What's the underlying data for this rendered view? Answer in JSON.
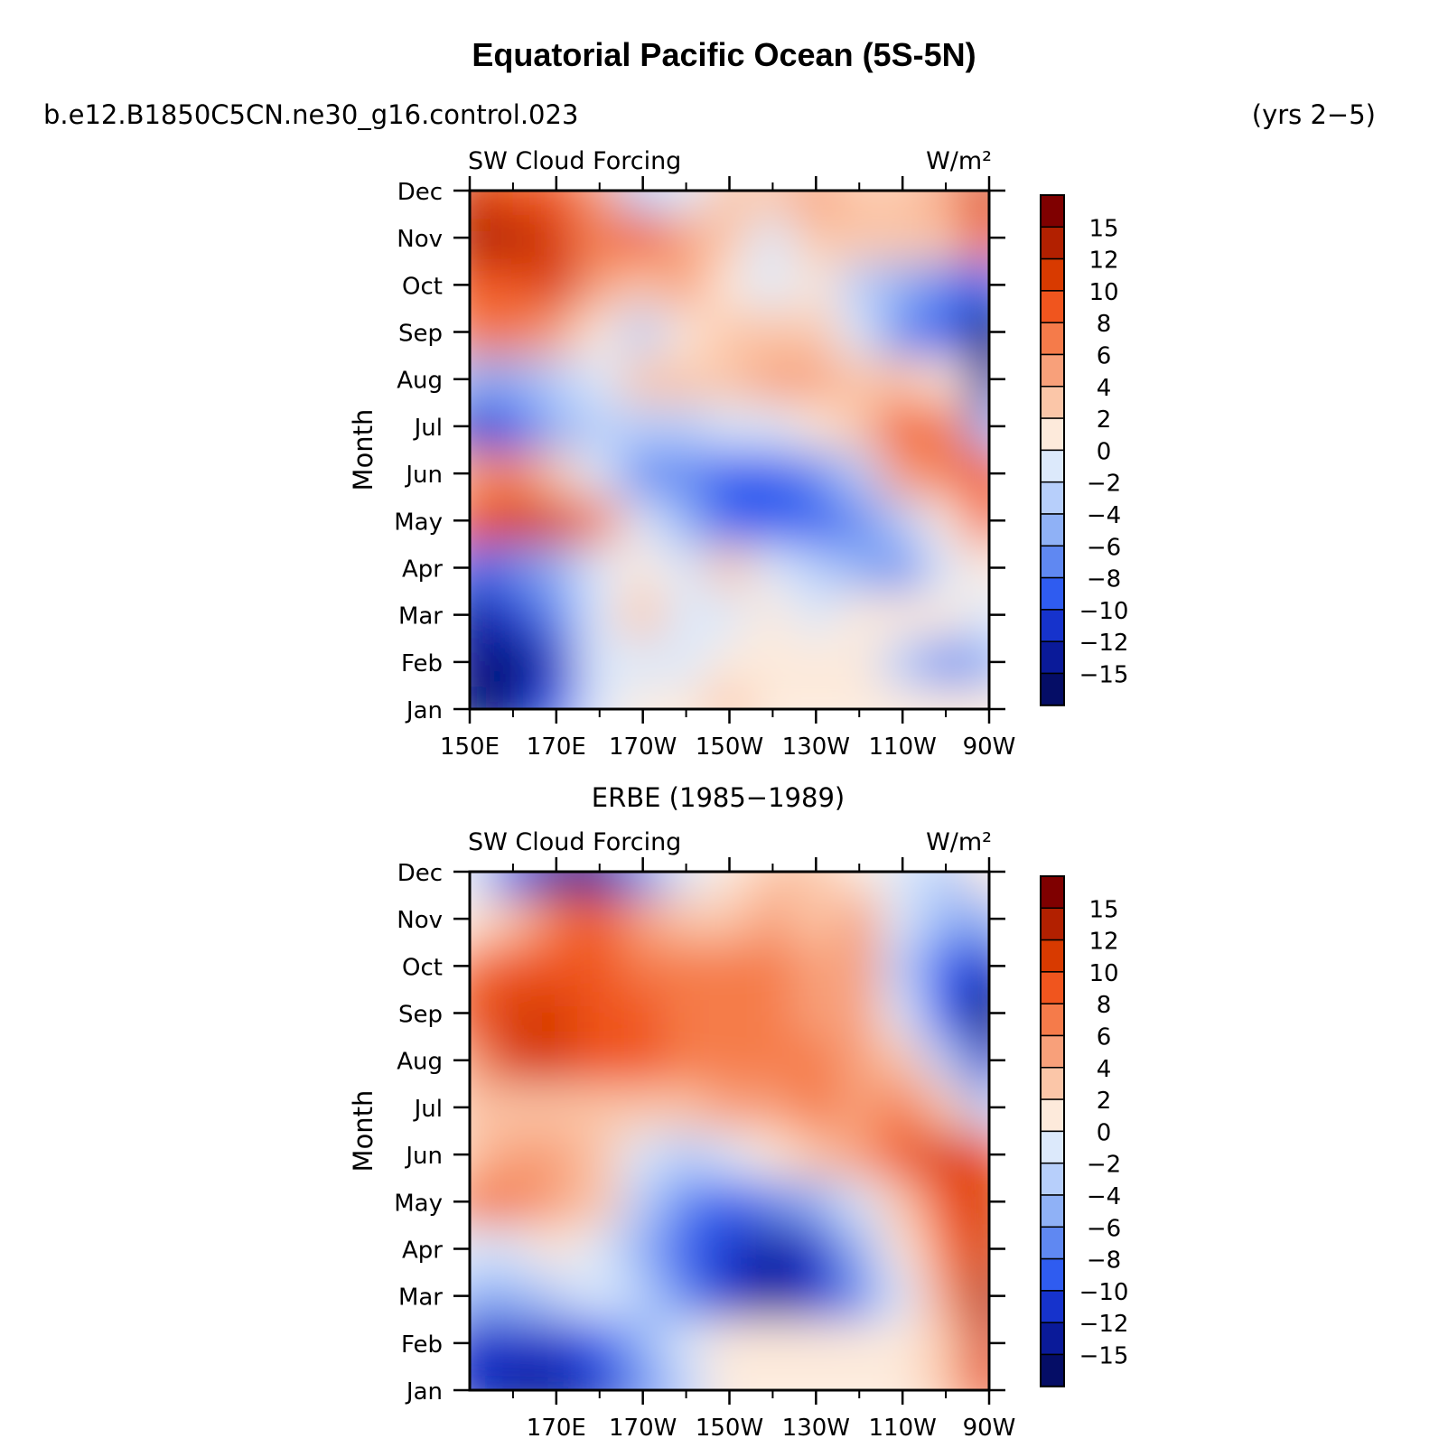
{
  "title": "Equatorial Pacific Ocean (5S-5N)",
  "case_name": "b.e12.B1850C5CN.ne30_g16.control.023",
  "years_label": "(yrs 2−5)",
  "colormap": {
    "levels": [
      "15",
      "12",
      "10",
      "8",
      "6",
      "4",
      "2",
      "0",
      "−2",
      "−4",
      "−6",
      "−8",
      "−10",
      "−12",
      "−15"
    ],
    "colors": [
      "#7f0000",
      "#b22000",
      "#d83a00",
      "#f0551e",
      "#f57b4a",
      "#f8a07a",
      "#fbc6a8",
      "#fdeadb",
      "#dce9fb",
      "#b7cffb",
      "#8fb1f6",
      "#5f88f2",
      "#2f5cf0",
      "#1633cc",
      "#0a1a99",
      "#050d66"
    ]
  },
  "chart_data": [
    {
      "type": "heatmap",
      "variable": "SW Cloud Forcing",
      "units": "W/m²",
      "ylabel": "Month",
      "y_ticks": [
        "Jan",
        "Feb",
        "Mar",
        "Apr",
        "May",
        "Jun",
        "Jul",
        "Aug",
        "Sep",
        "Oct",
        "Nov",
        "Dec"
      ],
      "x_ticks": [
        "150E",
        "170E",
        "170W",
        "150W",
        "130W",
        "110W",
        "90W"
      ],
      "x_range_lon": [
        150,
        270
      ],
      "approx_values": [
        [
          -16,
          -14,
          -10,
          -2,
          1,
          1,
          2,
          1,
          1,
          0,
          0,
          0,
          0
        ],
        [
          -15,
          -16,
          -12,
          -2,
          -2,
          -1,
          1,
          0,
          0,
          0,
          -4,
          -8,
          -5
        ],
        [
          -14,
          -12,
          -8,
          -2,
          2,
          -1,
          -1,
          1,
          -1,
          0,
          0,
          0,
          -1
        ],
        [
          -9,
          -8,
          -6,
          -2,
          0,
          -1,
          2,
          -1,
          -4,
          -6,
          -7,
          -2,
          0
        ],
        [
          9,
          11,
          10,
          6,
          -2,
          -6,
          -9,
          -10,
          -10,
          -8,
          -4,
          0,
          8
        ],
        [
          5,
          6,
          2,
          -2,
          -7,
          -8,
          -10,
          -9,
          -7,
          -4,
          4,
          7,
          8
        ],
        [
          -12,
          -10,
          -6,
          -3,
          -4,
          -3,
          -2,
          -1,
          1,
          3,
          8,
          7,
          -6
        ],
        [
          -6,
          -5,
          -4,
          -2,
          2,
          2,
          3,
          5,
          4,
          2,
          3,
          0,
          -15
        ],
        [
          7,
          7,
          4,
          1,
          -3,
          0,
          2,
          2,
          2,
          -2,
          -8,
          -10,
          -16
        ],
        [
          8,
          9,
          10,
          5,
          3,
          4,
          1,
          -2,
          0,
          -4,
          -6,
          -8,
          -10
        ],
        [
          12,
          14,
          11,
          6,
          8,
          5,
          2,
          -1,
          3,
          2,
          2,
          3,
          8
        ],
        [
          10,
          9,
          8,
          5,
          -3,
          -2,
          2,
          3,
          4,
          3,
          3,
          4,
          10
        ]
      ]
    },
    {
      "type": "heatmap",
      "panel_title": "ERBE (1985−1989)",
      "variable": "SW Cloud Forcing",
      "units": "W/m²",
      "ylabel": "Month",
      "y_ticks": [
        "Jan",
        "Feb",
        "Mar",
        "Apr",
        "May",
        "Jun",
        "Jul",
        "Aug",
        "Sep",
        "Oct",
        "Nov",
        "Dec"
      ],
      "x_ticks": [
        "170E",
        "170W",
        "150W",
        "130W",
        "110W",
        "90W"
      ],
      "x_range_lon": [
        150,
        270
      ],
      "approx_values": [
        [
          -12,
          -14,
          -14,
          -12,
          -8,
          -3,
          0,
          1,
          1,
          0,
          0,
          2,
          8
        ],
        [
          -11,
          -12,
          -11,
          -9,
          -6,
          -2,
          1,
          1,
          1,
          1,
          0,
          2,
          10
        ],
        [
          -6,
          -6,
          -3,
          -2,
          -3,
          -8,
          -11,
          -13,
          -12,
          -8,
          -2,
          5,
          14
        ],
        [
          -2,
          -2,
          0,
          -1,
          -6,
          -9,
          -12,
          -13,
          -11,
          -6,
          0,
          6,
          10
        ],
        [
          7,
          6,
          4,
          2,
          -4,
          -8,
          -9,
          -8,
          -5,
          -2,
          3,
          8,
          10
        ],
        [
          3,
          4,
          5,
          2,
          -1,
          -3,
          -2,
          0,
          2,
          4,
          9,
          11,
          8
        ],
        [
          3,
          2,
          3,
          3,
          2,
          3,
          4,
          5,
          6,
          5,
          6,
          2,
          -3
        ],
        [
          4,
          10,
          11,
          9,
          8,
          7,
          6,
          6,
          6,
          5,
          3,
          -4,
          -12
        ],
        [
          8,
          11,
          10,
          9,
          8,
          7,
          6,
          6,
          5,
          4,
          -2,
          -10,
          -16
        ],
        [
          6,
          9,
          9,
          9,
          7,
          6,
          6,
          6,
          5,
          4,
          -4,
          -9,
          -12
        ],
        [
          1,
          3,
          6,
          8,
          5,
          3,
          3,
          4,
          3,
          4,
          -1,
          -6,
          -6
        ],
        [
          -2,
          -10,
          -14,
          -13,
          -8,
          -2,
          1,
          2,
          2,
          0,
          -2,
          -3,
          0
        ]
      ]
    }
  ]
}
